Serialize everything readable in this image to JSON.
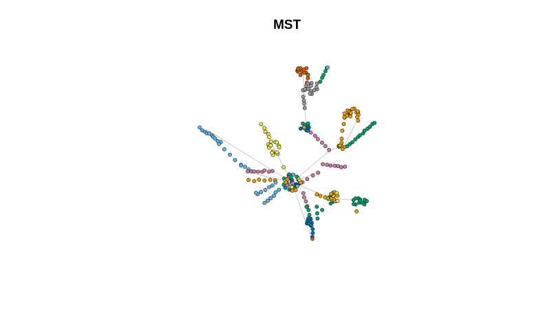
{
  "title": "MST",
  "colors": {
    "orange": "#D55E00",
    "grey": "#999999",
    "gold": "#E69F00",
    "teal": "#009E73",
    "yellow": "#F0E442",
    "pink": "#CC79A7",
    "skyblue": "#56B4E9",
    "darkblue": "#0072B2",
    "edge": "#bbbbbb",
    "stroke": "#222222"
  }
}
